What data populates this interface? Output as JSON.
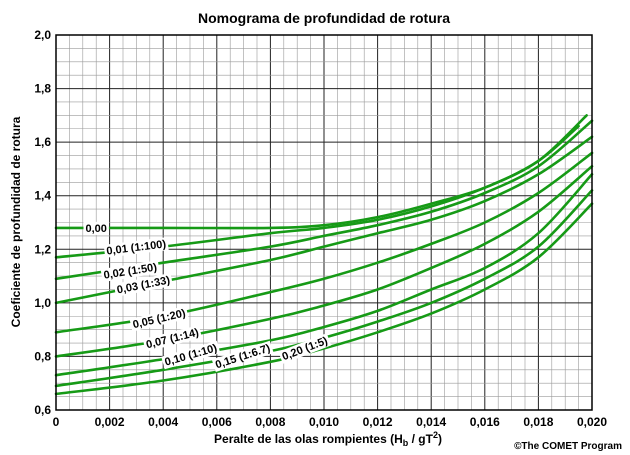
{
  "chart_data": {
    "type": "line",
    "title": "Nomograma de profundidad de rotura",
    "xlabel_main": "Peralte de las olas rompientes (H",
    "xlabel_sub": "b",
    "xlabel_mid": " / gT",
    "xlabel_sup": "2",
    "xlabel_end": ")",
    "ylabel": "Coeficiente de profundidad de rotura",
    "xlim": [
      0,
      0.02
    ],
    "ylim": [
      0.6,
      2.0
    ],
    "x_ticks": [
      "0",
      "0,002",
      "0,004",
      "0,006",
      "0,008",
      "0,010",
      "0,012",
      "0,014",
      "0,016",
      "0,018",
      "0,020"
    ],
    "y_ticks": [
      "0,6",
      "0,8",
      "1,0",
      "1,2",
      "1,4",
      "1,6",
      "1,8",
      "2,0"
    ],
    "grid": true,
    "line_color": "#169a16",
    "series": [
      {
        "name": "0,00",
        "x": [
          0,
          0.004,
          0.008,
          0.01,
          0.012,
          0.014,
          0.016,
          0.018,
          0.0195
        ],
        "y": [
          1.28,
          1.28,
          1.28,
          1.29,
          1.32,
          1.37,
          1.43,
          1.53,
          1.66
        ]
      },
      {
        "name": "0,01 (1:100)",
        "x": [
          0,
          0.004,
          0.008,
          0.01,
          0.012,
          0.014,
          0.016,
          0.018,
          0.0198
        ],
        "y": [
          1.17,
          1.21,
          1.26,
          1.28,
          1.31,
          1.36,
          1.43,
          1.53,
          1.7
        ]
      },
      {
        "name": "0,02 (1:50)",
        "x": [
          0,
          0.004,
          0.008,
          0.01,
          0.012,
          0.014,
          0.016,
          0.018,
          0.02
        ],
        "y": [
          1.09,
          1.15,
          1.21,
          1.25,
          1.29,
          1.34,
          1.41,
          1.51,
          1.68
        ]
      },
      {
        "name": "0,03 (1:33)",
        "x": [
          0,
          0.004,
          0.008,
          0.01,
          0.012,
          0.014,
          0.016,
          0.018,
          0.02
        ],
        "y": [
          1.0,
          1.08,
          1.16,
          1.21,
          1.26,
          1.31,
          1.38,
          1.48,
          1.62
        ]
      },
      {
        "name": "0,05 (1:20)",
        "x": [
          0,
          0.004,
          0.008,
          0.01,
          0.012,
          0.014,
          0.016,
          0.018,
          0.02
        ],
        "y": [
          0.89,
          0.95,
          1.04,
          1.09,
          1.15,
          1.22,
          1.3,
          1.41,
          1.56
        ]
      },
      {
        "name": "0,07 (1:14)",
        "x": [
          0,
          0.004,
          0.008,
          0.01,
          0.012,
          0.014,
          0.016,
          0.018,
          0.02
        ],
        "y": [
          0.8,
          0.86,
          0.94,
          0.99,
          1.05,
          1.13,
          1.22,
          1.34,
          1.51
        ]
      },
      {
        "name": "0,10 (1:10)",
        "x": [
          0,
          0.004,
          0.008,
          0.01,
          0.012,
          0.014,
          0.016,
          0.018,
          0.02
        ],
        "y": [
          0.73,
          0.79,
          0.86,
          0.91,
          0.97,
          1.05,
          1.13,
          1.26,
          1.48
        ]
      },
      {
        "name": "0,15 (1:6.7)",
        "x": [
          0,
          0.004,
          0.008,
          0.01,
          0.012,
          0.014,
          0.016,
          0.018,
          0.02
        ],
        "y": [
          0.69,
          0.75,
          0.82,
          0.87,
          0.93,
          1.0,
          1.09,
          1.21,
          1.42
        ]
      },
      {
        "name": "0,20 (1:5)",
        "x": [
          0,
          0.004,
          0.008,
          0.01,
          0.012,
          0.014,
          0.016,
          0.018,
          0.02
        ],
        "y": [
          0.66,
          0.71,
          0.78,
          0.83,
          0.89,
          0.96,
          1.05,
          1.17,
          1.37
        ]
      }
    ],
    "labels": [
      {
        "text": "0,00",
        "x": 0.0011,
        "y": 1.265,
        "angle": 0
      },
      {
        "text": "0,01 (1:100)",
        "x": 0.0019,
        "y": 1.18,
        "angle": -7
      },
      {
        "text": "0,02 (1:50)",
        "x": 0.0018,
        "y": 1.09,
        "angle": -9
      },
      {
        "text": "0,03 (1:33)",
        "x": 0.0023,
        "y": 1.035,
        "angle": -11
      },
      {
        "text": "0,05 (1:20)",
        "x": 0.0029,
        "y": 0.905,
        "angle": -13
      },
      {
        "text": "0,07 (1:14)",
        "x": 0.0034,
        "y": 0.83,
        "angle": -14
      },
      {
        "text": "0,10 (1:10)",
        "x": 0.0041,
        "y": 0.765,
        "angle": -16
      },
      {
        "text": "0,15 (1:6.7)",
        "x": 0.006,
        "y": 0.755,
        "angle": -18
      },
      {
        "text": "0,20 (1:5)",
        "x": 0.0085,
        "y": 0.785,
        "angle": -21
      }
    ]
  },
  "credit": "©The COMET Program"
}
